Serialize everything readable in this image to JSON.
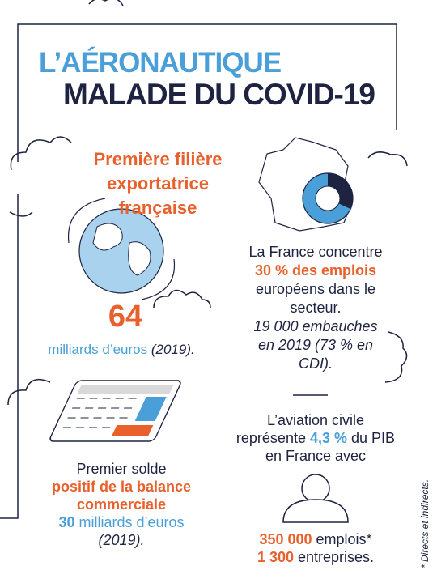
{
  "header": {
    "title_line1": "L’AÉRONAUTIQUE",
    "title_line2": "MALADE DU COVID-19"
  },
  "export": {
    "title": "Première filière exportatrice française",
    "amount": "64",
    "unit": "milliards d’euros",
    "year": "(2019)."
  },
  "jobs": {
    "intro": "La France concentre",
    "highlight": "30 % des emplois",
    "rest": "européens dans le secteur.",
    "hiring": "19 000 embauches en 2019 (73 % en CDI)."
  },
  "trade": {
    "line1": "Premier solde",
    "highlight": "positif de la balance commerciale",
    "amount": "30",
    "unit": "milliards d’euros",
    "year": "(2019)."
  },
  "aviation": {
    "intro": "L’aviation civile représente",
    "share": "4,3 %",
    "rest": "du PIB en France avec",
    "jobs_number": "350 000",
    "jobs_label": "emplois*",
    "firms_number": "1 300",
    "firms_label": "entreprises."
  },
  "footnote": "* Directs et indirects."
}
